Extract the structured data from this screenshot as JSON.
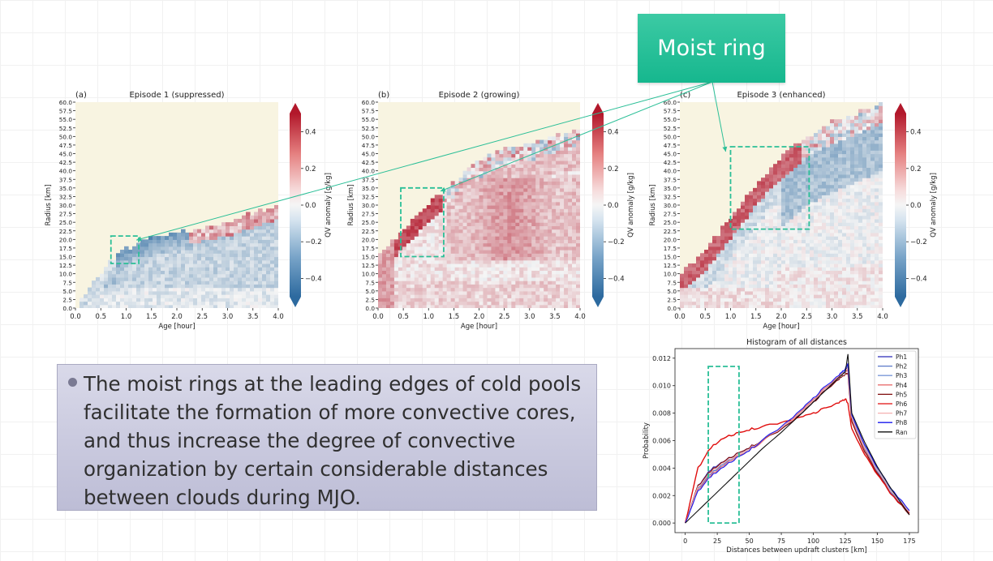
{
  "slide": {
    "callout_title": "Moist ring",
    "bullet": "The moist rings at the leading edges of cold pools facilitate the formation of more convective cores, and thus increase the degree of convective organization by certain considerable distances between clouds during MJO.",
    "colors": {
      "accent": "#2bbf97",
      "box_fill": "#cdcde0",
      "bullet_dot": "#7a7a93"
    }
  },
  "chart_data": [
    {
      "type": "heatmap",
      "panel_label": "(a)",
      "title": "Episode 1 (suppressed)",
      "xlabel": "Age [hour]",
      "ylabel": "Radius [km]",
      "xlim": [
        0,
        4.0
      ],
      "ylim": [
        0,
        60
      ],
      "xticks": [
        "0.0",
        "0.5",
        "1.0",
        "1.5",
        "2.0",
        "2.5",
        "3.0",
        "3.5",
        "4.0"
      ],
      "yticks": [
        "0.0",
        "2.5",
        "5.0",
        "7.5",
        "10.0",
        "12.5",
        "15.0",
        "17.5",
        "20.0",
        "22.5",
        "25.0",
        "27.5",
        "30.0",
        "32.5",
        "35.0",
        "37.5",
        "40.0",
        "42.5",
        "45.0",
        "47.5",
        "50.0",
        "52.5",
        "55.0",
        "57.5",
        "60.0"
      ],
      "colorbar": {
        "label": "QV anomaly [g/kg]",
        "range": [
          -0.5,
          0.5
        ],
        "ticks": [
          "0.4",
          "0.2",
          "0.0",
          "−0.2",
          "−0.4"
        ]
      },
      "front_km": [
        [
          0,
          0
        ],
        [
          0.3,
          7
        ],
        [
          0.7,
          14
        ],
        [
          1.2,
          19
        ],
        [
          2.0,
          22
        ],
        [
          3.0,
          25
        ],
        [
          4.0,
          30
        ]
      ],
      "highlight": {
        "x": [
          0.7,
          1.25
        ],
        "y": [
          13,
          21
        ]
      }
    },
    {
      "type": "heatmap",
      "panel_label": "(b)",
      "title": "Episode 2 (growing)",
      "xlabel": "Age [hour]",
      "ylabel": "Radius [km]",
      "xlim": [
        0,
        4.0
      ],
      "ylim": [
        0,
        60
      ],
      "xticks": [
        "0.0",
        "0.5",
        "1.0",
        "1.5",
        "2.0",
        "2.5",
        "3.0",
        "3.5",
        "4.0"
      ],
      "yticks": [
        "0.0",
        "2.5",
        "5.0",
        "7.5",
        "10.0",
        "12.5",
        "15.0",
        "17.5",
        "20.0",
        "22.5",
        "25.0",
        "27.5",
        "30.0",
        "32.5",
        "35.0",
        "37.5",
        "40.0",
        "42.5",
        "45.0",
        "47.5",
        "50.0",
        "52.5",
        "55.0",
        "57.5",
        "60.0"
      ],
      "colorbar": {
        "label": "QV anomaly [g/kg]",
        "range": [
          -0.5,
          0.5
        ],
        "ticks": [
          "0.4",
          "0.2",
          "0.0",
          "−0.2",
          "−0.4"
        ]
      },
      "front_km": [
        [
          0,
          15
        ],
        [
          0.4,
          21
        ],
        [
          1.0,
          30
        ],
        [
          1.5,
          37
        ],
        [
          2.0,
          43
        ],
        [
          2.5,
          47
        ],
        [
          3.0,
          48
        ],
        [
          3.5,
          50
        ],
        [
          4.0,
          52
        ]
      ],
      "highlight": {
        "x": [
          0.45,
          1.3
        ],
        "y": [
          15,
          35
        ]
      }
    },
    {
      "type": "heatmap",
      "panel_label": "(c)",
      "title": "Episode 3 (enhanced)",
      "xlabel": "Age [hour]",
      "ylabel": "Radius [km]",
      "xlim": [
        0,
        4.0
      ],
      "ylim": [
        0,
        60
      ],
      "xticks": [
        "0.0",
        "0.5",
        "1.0",
        "1.5",
        "2.0",
        "2.5",
        "3.0",
        "3.5",
        "4.0"
      ],
      "yticks": [
        "0.0",
        "2.5",
        "5.0",
        "7.5",
        "10.0",
        "12.5",
        "15.0",
        "17.5",
        "20.0",
        "22.5",
        "25.0",
        "27.5",
        "30.0",
        "32.5",
        "35.0",
        "37.5",
        "40.0",
        "42.5",
        "45.0",
        "47.5",
        "50.0",
        "52.5",
        "55.0",
        "57.5",
        "60.0"
      ],
      "colorbar": {
        "label": "QV anomaly [g/kg]",
        "range": [
          -0.5,
          0.5
        ],
        "ticks": [
          "0.4",
          "0.2",
          "0.0",
          "−0.2",
          "−0.4"
        ]
      },
      "front_km": [
        [
          0,
          10
        ],
        [
          0.5,
          17
        ],
        [
          1.0,
          26
        ],
        [
          1.5,
          36
        ],
        [
          2.0,
          44
        ],
        [
          2.5,
          50
        ],
        [
          3.0,
          54
        ],
        [
          3.5,
          57
        ],
        [
          4.0,
          60
        ]
      ],
      "highlight": {
        "x": [
          1.0,
          2.55
        ],
        "y": [
          23,
          47
        ]
      }
    },
    {
      "type": "line",
      "title": "Histogram of all distances",
      "xlabel": "Distances between updraft clusters [km]",
      "ylabel": "Probability",
      "xlim": [
        -8,
        182
      ],
      "ylim": [
        -0.0007,
        0.0127
      ],
      "xticks": [
        0,
        25,
        50,
        75,
        100,
        125,
        150,
        175
      ],
      "yticks": [
        "0.000",
        "0.002",
        "0.004",
        "0.006",
        "0.008",
        "0.010",
        "0.012"
      ],
      "highlight": {
        "x": [
          18,
          42
        ],
        "y": [
          0.0,
          0.0114
        ]
      },
      "x": [
        0,
        10,
        20,
        30,
        40,
        50,
        60,
        75,
        90,
        100,
        110,
        120,
        125,
        127,
        130,
        140,
        150,
        160,
        175
      ],
      "series": [
        {
          "name": "Ph1",
          "color": "#2b2bb8",
          "values": [
            0.0,
            0.0027,
            0.0039,
            0.0045,
            0.005,
            0.0055,
            0.006,
            0.0068,
            0.0079,
            0.0088,
            0.0097,
            0.0106,
            0.0111,
            0.0115,
            0.0076,
            0.0055,
            0.0038,
            0.0024,
            0.0008
          ]
        },
        {
          "name": "Ph2",
          "color": "#5a78c8",
          "values": [
            0.0,
            0.0025,
            0.0036,
            0.0043,
            0.0049,
            0.0054,
            0.006,
            0.0069,
            0.008,
            0.0089,
            0.0098,
            0.0106,
            0.011,
            0.0113,
            0.0075,
            0.0054,
            0.0037,
            0.0023,
            0.0007
          ]
        },
        {
          "name": "Ph3",
          "color": "#7b9ad8",
          "values": [
            0.0,
            0.0026,
            0.0037,
            0.0044,
            0.0049,
            0.0054,
            0.006,
            0.0069,
            0.008,
            0.0089,
            0.0098,
            0.0107,
            0.0112,
            0.0116,
            0.0077,
            0.0056,
            0.0039,
            0.0025,
            0.0008
          ]
        },
        {
          "name": "Ph4",
          "color": "#e86f6f",
          "values": [
            0.0,
            0.0024,
            0.0035,
            0.0042,
            0.0048,
            0.0053,
            0.0059,
            0.0069,
            0.0081,
            0.009,
            0.0099,
            0.0107,
            0.011,
            0.0112,
            0.0074,
            0.0053,
            0.0036,
            0.0022,
            0.0006
          ]
        },
        {
          "name": "Ph5",
          "color": "#7f0b0b",
          "values": [
            0.0,
            0.0027,
            0.0038,
            0.0045,
            0.005,
            0.0055,
            0.006,
            0.0068,
            0.0079,
            0.0088,
            0.0097,
            0.0105,
            0.0108,
            0.011,
            0.0073,
            0.0052,
            0.0036,
            0.0022,
            0.0006
          ]
        },
        {
          "name": "Ph6",
          "color": "#e00d0d",
          "values": [
            0.0,
            0.004,
            0.0055,
            0.0062,
            0.0065,
            0.0068,
            0.007,
            0.0073,
            0.0077,
            0.008,
            0.0084,
            0.0088,
            0.009,
            0.0088,
            0.0068,
            0.005,
            0.0035,
            0.0022,
            0.0007
          ]
        },
        {
          "name": "Ph7",
          "color": "#f5b0b0",
          "values": [
            0.0,
            0.0026,
            0.0037,
            0.0044,
            0.0049,
            0.0054,
            0.006,
            0.0069,
            0.008,
            0.0089,
            0.0098,
            0.0106,
            0.011,
            0.0114,
            0.0076,
            0.0055,
            0.0038,
            0.0024,
            0.0008
          ]
        },
        {
          "name": "Ph8",
          "color": "#1818ee",
          "values": [
            0.0,
            0.0023,
            0.0034,
            0.0041,
            0.0047,
            0.0053,
            0.006,
            0.007,
            0.0082,
            0.0091,
            0.01,
            0.0108,
            0.0112,
            0.0117,
            0.0078,
            0.0057,
            0.004,
            0.0026,
            0.0009
          ]
        },
        {
          "name": "Ran",
          "color": "#111111",
          "values": [
            0.0,
            0.0009,
            0.0018,
            0.0027,
            0.0036,
            0.0045,
            0.0054,
            0.0066,
            0.0079,
            0.0088,
            0.0097,
            0.0106,
            0.011,
            0.0123,
            0.008,
            0.0059,
            0.0041,
            0.0026,
            0.0006
          ]
        }
      ]
    }
  ]
}
